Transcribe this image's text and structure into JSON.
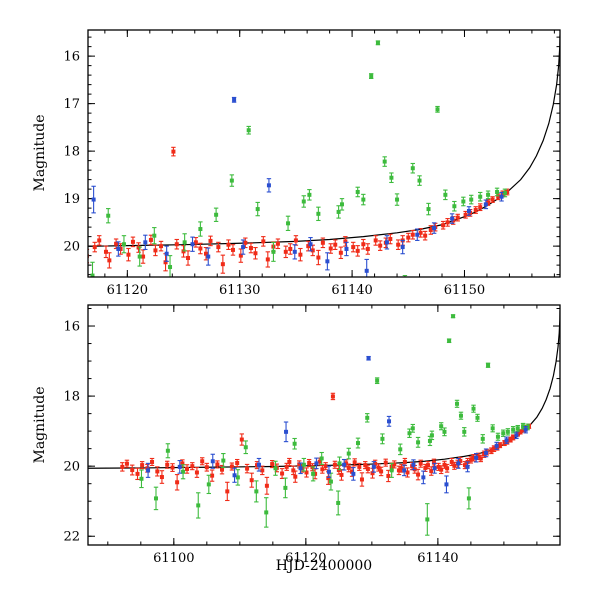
{
  "chart_data": {
    "type": "scatter",
    "title": "",
    "xlabel": "HJD-2400000",
    "ylabel": "Magnitude",
    "legend": "none",
    "marker": "square-with-error-bars",
    "grid": false,
    "colors": {
      "red": "#f02b18",
      "green": "#3dbb3d",
      "blue": "#2b4fd0",
      "model": "#000000"
    },
    "panels": [
      {
        "name": "top",
        "xlim": [
          61116.5,
          61158.5
        ],
        "ylim_bottom": 20.65,
        "ylim_top": 15.45,
        "xticks": [
          61120,
          61130,
          61140,
          61150
        ],
        "yticks": [
          16,
          17,
          18,
          19,
          20
        ],
        "x_minor_step": 2,
        "y_minor_step": 0.2
      },
      {
        "name": "bottom",
        "xlim": [
          61087.0,
          61158.5
        ],
        "ylim_bottom": 22.25,
        "ylim_top": 15.4,
        "xticks": [
          61100,
          61120,
          61140
        ],
        "yticks": [
          16,
          18,
          20,
          22
        ],
        "x_minor_step": 5,
        "y_minor_step": 0.5
      }
    ],
    "model_curve": [
      [
        61087.0,
        20.06
      ],
      [
        61095.0,
        20.05
      ],
      [
        61105.0,
        20.03
      ],
      [
        61115.0,
        20.01
      ],
      [
        61120.0,
        19.99
      ],
      [
        61125.0,
        19.97
      ],
      [
        61130.0,
        19.94
      ],
      [
        61135.0,
        19.9
      ],
      [
        61138.0,
        19.86
      ],
      [
        61141.0,
        19.8
      ],
      [
        61144.0,
        19.72
      ],
      [
        61146.0,
        19.65
      ],
      [
        61148.0,
        19.55
      ],
      [
        61150.0,
        19.38
      ],
      [
        61151.0,
        19.28
      ],
      [
        61152.0,
        19.15
      ],
      [
        61153.0,
        19.0
      ],
      [
        61154.0,
        18.82
      ],
      [
        61155.0,
        18.6
      ],
      [
        61155.8,
        18.35
      ],
      [
        61156.4,
        18.1
      ],
      [
        61157.0,
        17.78
      ],
      [
        61157.5,
        17.42
      ],
      [
        61157.9,
        17.02
      ],
      [
        61158.2,
        16.6
      ],
      [
        61158.38,
        16.2
      ],
      [
        61158.48,
        15.8
      ],
      [
        61158.5,
        15.55
      ]
    ],
    "series": [
      {
        "name": "red",
        "color": "#f02b18",
        "points": [
          [
            61092.2,
            20.02,
            0.12
          ],
          [
            61092.9,
            19.93,
            0.1
          ],
          [
            61093.7,
            20.11,
            0.14
          ],
          [
            61094.5,
            20.22,
            0.16
          ],
          [
            61095.2,
            19.97,
            0.1
          ],
          [
            61096.0,
            20.06,
            0.11
          ],
          [
            61096.7,
            19.88,
            0.1
          ],
          [
            61097.5,
            20.15,
            0.13
          ],
          [
            61098.2,
            20.31,
            0.18
          ],
          [
            61099.0,
            19.96,
            0.1
          ],
          [
            61099.8,
            20.04,
            0.11
          ],
          [
            61100.5,
            20.46,
            0.22
          ],
          [
            61101.3,
            19.92,
            0.1
          ],
          [
            61102.0,
            20.08,
            0.12
          ],
          [
            61102.8,
            20.0,
            0.1
          ],
          [
            61103.5,
            20.18,
            0.14
          ],
          [
            61104.3,
            19.86,
            0.1
          ],
          [
            61105.0,
            20.03,
            0.11
          ],
          [
            61105.8,
            20.27,
            0.16
          ],
          [
            61106.6,
            19.95,
            0.1
          ],
          [
            61107.3,
            20.1,
            0.12
          ],
          [
            61108.1,
            20.72,
            0.26
          ],
          [
            61108.8,
            20.01,
            0.1
          ],
          [
            61109.6,
            19.91,
            0.1
          ],
          [
            61110.3,
            19.24,
            0.16
          ],
          [
            61111.1,
            20.07,
            0.12
          ],
          [
            61111.8,
            20.4,
            0.2
          ],
          [
            61112.6,
            19.97,
            0.1
          ],
          [
            61113.4,
            20.12,
            0.12
          ],
          [
            61114.1,
            20.56,
            0.24
          ],
          [
            61114.9,
            19.94,
            0.1
          ],
          [
            61115.6,
            20.05,
            0.11
          ],
          [
            61116.4,
            20.21,
            0.14
          ],
          [
            61117.1,
            20.02,
            0.1
          ],
          [
            61117.5,
            19.88,
            0.1
          ],
          [
            61118.1,
            20.12,
            0.12
          ],
          [
            61118.4,
            20.3,
            0.16
          ],
          [
            61119.0,
            19.95,
            0.1
          ],
          [
            61119.4,
            20.06,
            0.11
          ],
          [
            61120.1,
            20.18,
            0.13
          ],
          [
            61120.5,
            19.91,
            0.1
          ],
          [
            61121.0,
            20.03,
            0.1
          ],
          [
            61121.4,
            20.22,
            0.14
          ],
          [
            61122.1,
            19.87,
            0.1
          ],
          [
            61122.5,
            20.09,
            0.11
          ],
          [
            61123.0,
            20.0,
            0.1
          ],
          [
            61123.4,
            20.34,
            0.18
          ],
          [
            61124.1,
            18.01,
            0.09
          ],
          [
            61124.4,
            19.96,
            0.1
          ],
          [
            61125.0,
            20.11,
            0.12
          ],
          [
            61125.4,
            20.25,
            0.15
          ],
          [
            61126.1,
            19.92,
            0.1
          ],
          [
            61126.5,
            20.05,
            0.11
          ],
          [
            61127.0,
            20.16,
            0.13
          ],
          [
            61127.4,
            19.89,
            0.1
          ],
          [
            61128.1,
            20.02,
            0.1
          ],
          [
            61128.5,
            20.38,
            0.19
          ],
          [
            61129.0,
            19.97,
            0.1
          ],
          [
            61129.4,
            20.08,
            0.11
          ],
          [
            61130.1,
            20.2,
            0.14
          ],
          [
            61130.5,
            19.93,
            0.1
          ],
          [
            61131.0,
            20.04,
            0.1
          ],
          [
            61131.4,
            20.15,
            0.12
          ],
          [
            61132.1,
            19.9,
            0.1
          ],
          [
            61132.5,
            20.28,
            0.16
          ],
          [
            61133.0,
            20.01,
            0.1
          ],
          [
            61133.4,
            19.95,
            0.1
          ],
          [
            61134.1,
            20.12,
            0.12
          ],
          [
            61134.5,
            20.06,
            0.11
          ],
          [
            61135.0,
            19.88,
            0.1
          ],
          [
            61135.4,
            20.18,
            0.13
          ],
          [
            61136.1,
            20.0,
            0.1
          ],
          [
            61136.5,
            20.09,
            0.11
          ],
          [
            61137.0,
            20.24,
            0.15
          ],
          [
            61137.4,
            19.93,
            0.1
          ],
          [
            61138.1,
            20.05,
            0.1
          ],
          [
            61138.5,
            19.97,
            0.1
          ],
          [
            61139.0,
            20.14,
            0.12
          ],
          [
            61139.4,
            19.9,
            0.1
          ],
          [
            61140.1,
            20.02,
            0.1
          ],
          [
            61140.5,
            20.1,
            0.11
          ],
          [
            61141.0,
            19.96,
            0.1
          ],
          [
            61141.4,
            20.06,
            0.11
          ],
          [
            61142.1,
            19.88,
            0.1
          ],
          [
            61142.5,
            19.99,
            0.1
          ],
          [
            61143.0,
            19.93,
            0.1
          ],
          [
            61143.4,
            19.85,
            0.1
          ],
          [
            61144.1,
            19.97,
            0.1
          ],
          [
            61144.5,
            19.88,
            0.1
          ],
          [
            61145.0,
            19.82,
            0.09
          ],
          [
            61145.4,
            19.76,
            0.09
          ],
          [
            61146.1,
            19.72,
            0.09
          ],
          [
            61146.5,
            19.78,
            0.09
          ],
          [
            61147.0,
            19.66,
            0.09
          ],
          [
            61147.4,
            19.6,
            0.08
          ],
          [
            61148.1,
            19.56,
            0.08
          ],
          [
            61148.5,
            19.5,
            0.08
          ],
          [
            61149.0,
            19.46,
            0.08
          ],
          [
            61149.4,
            19.4,
            0.07
          ],
          [
            61150.1,
            19.34,
            0.07
          ],
          [
            61150.5,
            19.3,
            0.07
          ],
          [
            61151.0,
            19.24,
            0.07
          ],
          [
            61151.4,
            19.18,
            0.07
          ],
          [
            61152.1,
            19.08,
            0.06
          ],
          [
            61152.5,
            19.02,
            0.06
          ],
          [
            61153.0,
            18.96,
            0.06
          ],
          [
            61153.4,
            18.9,
            0.06
          ],
          [
            61153.8,
            18.86,
            0.06
          ]
        ]
      },
      {
        "name": "green",
        "color": "#3dbb3d",
        "points": [
          [
            61095.1,
            20.36,
            0.25
          ],
          [
            61097.3,
            20.92,
            0.32
          ],
          [
            61099.1,
            19.56,
            0.2
          ],
          [
            61101.4,
            20.16,
            0.2
          ],
          [
            61103.7,
            21.12,
            0.36
          ],
          [
            61105.3,
            20.52,
            0.26
          ],
          [
            61107.5,
            19.84,
            0.2
          ],
          [
            61109.7,
            20.32,
            0.22
          ],
          [
            61110.9,
            19.46,
            0.18
          ],
          [
            61112.5,
            20.72,
            0.3
          ],
          [
            61114.0,
            21.32,
            0.42
          ],
          [
            61115.4,
            20.06,
            0.2
          ],
          [
            61116.9,
            20.62,
            0.28
          ],
          [
            61118.3,
            19.36,
            0.15
          ],
          [
            61119.7,
            19.96,
            0.18
          ],
          [
            61121.1,
            20.22,
            0.2
          ],
          [
            61122.4,
            19.78,
            0.17
          ],
          [
            61123.8,
            20.44,
            0.24
          ],
          [
            61124.9,
            21.05,
            0.34
          ],
          [
            61125.1,
            19.92,
            0.18
          ],
          [
            61126.5,
            19.64,
            0.15
          ],
          [
            61127.9,
            19.34,
            0.14
          ],
          [
            61129.3,
            18.62,
            0.12
          ],
          [
            61130.8,
            17.56,
            0.08
          ],
          [
            61131.6,
            19.22,
            0.14
          ],
          [
            61133.0,
            20.12,
            0.2
          ],
          [
            61134.3,
            19.52,
            0.15
          ],
          [
            61135.7,
            19.06,
            0.12
          ],
          [
            61136.2,
            18.92,
            0.11
          ],
          [
            61137.0,
            19.32,
            0.14
          ],
          [
            61138.4,
            21.52,
            0.45
          ],
          [
            61138.8,
            19.28,
            0.13
          ],
          [
            61139.1,
            19.12,
            0.12
          ],
          [
            61140.5,
            18.86,
            0.1
          ],
          [
            61141.0,
            19.02,
            0.11
          ],
          [
            61141.7,
            16.42,
            0.05
          ],
          [
            61142.3,
            15.72,
            0.04
          ],
          [
            61142.9,
            18.22,
            0.1
          ],
          [
            61143.5,
            18.56,
            0.1
          ],
          [
            61144.0,
            19.02,
            0.12
          ],
          [
            61144.7,
            20.92,
            0.3
          ],
          [
            61145.4,
            18.36,
            0.1
          ],
          [
            61146.0,
            18.62,
            0.1
          ],
          [
            61146.8,
            19.22,
            0.12
          ],
          [
            61147.6,
            17.12,
            0.06
          ],
          [
            61148.3,
            18.92,
            0.1
          ],
          [
            61149.1,
            19.16,
            0.1
          ],
          [
            61149.9,
            19.06,
            0.09
          ],
          [
            61150.6,
            19.02,
            0.09
          ],
          [
            61151.4,
            18.96,
            0.09
          ],
          [
            61152.1,
            18.92,
            0.08
          ],
          [
            61152.9,
            18.86,
            0.08
          ],
          [
            61153.6,
            18.88,
            0.08
          ]
        ]
      },
      {
        "name": "blue",
        "color": "#2b4fd0",
        "points": [
          [
            61096.1,
            20.12,
            0.2
          ],
          [
            61100.9,
            20.02,
            0.18
          ],
          [
            61105.9,
            19.86,
            0.2
          ],
          [
            61109.2,
            20.26,
            0.2
          ],
          [
            61112.9,
            19.96,
            0.18
          ],
          [
            61117.0,
            19.02,
            0.28
          ],
          [
            61119.2,
            20.06,
            0.15
          ],
          [
            61121.6,
            19.92,
            0.15
          ],
          [
            61123.5,
            20.16,
            0.16
          ],
          [
            61125.8,
            19.96,
            0.15
          ],
          [
            61127.2,
            20.22,
            0.18
          ],
          [
            61129.5,
            16.92,
            0.05
          ],
          [
            61130.3,
            20.02,
            0.15
          ],
          [
            61132.6,
            18.72,
            0.14
          ],
          [
            61134.9,
            20.12,
            0.15
          ],
          [
            61136.3,
            19.96,
            0.14
          ],
          [
            61137.8,
            20.32,
            0.18
          ],
          [
            61139.5,
            20.06,
            0.14
          ],
          [
            61141.3,
            20.52,
            0.24
          ],
          [
            61143.1,
            19.92,
            0.14
          ],
          [
            61144.5,
            20.02,
            0.14
          ],
          [
            61145.8,
            19.76,
            0.12
          ],
          [
            61147.3,
            19.62,
            0.11
          ],
          [
            61148.9,
            19.42,
            0.1
          ],
          [
            61150.4,
            19.26,
            0.09
          ],
          [
            61151.9,
            19.12,
            0.09
          ],
          [
            61153.3,
            18.96,
            0.09
          ]
        ]
      }
    ]
  }
}
